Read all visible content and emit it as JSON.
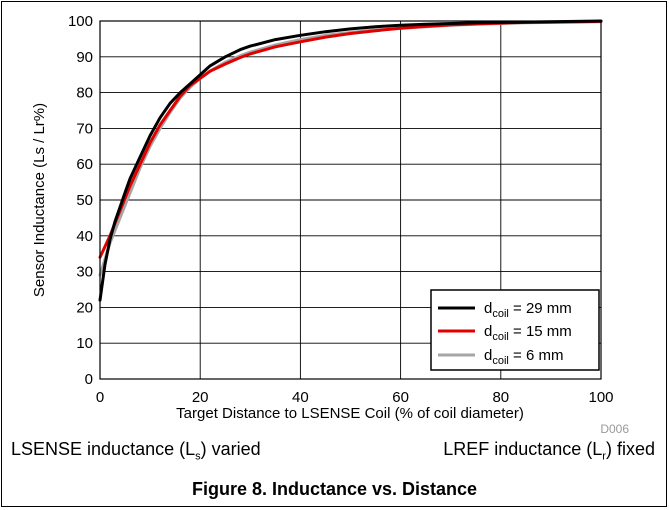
{
  "chart_data": {
    "type": "line",
    "xlabel": "Target Distance to LSENSE Coil (% of coil diameter)",
    "ylabel": "Sensor Inductance (Ls / Lr%)",
    "xlim": [
      0,
      100
    ],
    "ylim": [
      0,
      100
    ],
    "xticks": [
      0,
      20,
      40,
      60,
      80,
      100
    ],
    "yticks": [
      0,
      10,
      20,
      30,
      40,
      50,
      60,
      70,
      80,
      90,
      100
    ],
    "grid": true,
    "legend_position": "bottom-right",
    "code": "D006",
    "series": [
      {
        "name": "d_coil = 29 mm",
        "color": "#000000",
        "x": [
          0,
          1,
          2,
          3,
          4,
          5,
          6,
          8,
          10,
          12,
          14,
          16,
          18,
          20,
          22,
          25,
          28,
          30,
          35,
          40,
          45,
          50,
          55,
          60,
          65,
          70,
          75,
          80,
          85,
          90,
          95,
          100
        ],
        "y": [
          22,
          32,
          39,
          44,
          48,
          52,
          56,
          62,
          68,
          73,
          77,
          80,
          82.5,
          85,
          87.5,
          90,
          92,
          93,
          94.8,
          96,
          97,
          97.8,
          98.4,
          98.8,
          99.1,
          99.3,
          99.5,
          99.6,
          99.7,
          99.8,
          99.9,
          100
        ]
      },
      {
        "name": "d_coil = 15 mm",
        "color": "#e00000",
        "x": [
          0,
          2,
          4,
          6,
          8,
          10,
          12,
          14,
          16,
          18,
          20,
          22,
          25,
          28,
          30,
          35,
          40,
          45,
          50,
          55,
          60,
          65,
          70,
          75,
          80,
          85,
          90,
          95,
          100
        ],
        "y": [
          34,
          40,
          47,
          54,
          60,
          66,
          71,
          75,
          79,
          82,
          84,
          86,
          88,
          89.8,
          90.8,
          92.8,
          94.2,
          95.5,
          96.5,
          97.3,
          98,
          98.5,
          98.9,
          99.2,
          99.4,
          99.6,
          99.7,
          99.8,
          99.9
        ]
      },
      {
        "name": "d_coil = 6 mm",
        "color": "#a6a6a6",
        "x": [
          0,
          2,
          4,
          6,
          8,
          10,
          12,
          14,
          16,
          18,
          20,
          22,
          25,
          28,
          30,
          35,
          40,
          45,
          50,
          55,
          60,
          65,
          70,
          75,
          80,
          85,
          90,
          95,
          100
        ],
        "y": [
          29,
          38,
          45,
          52,
          59,
          65,
          70,
          74.5,
          78.5,
          81.5,
          84,
          86,
          88.5,
          90.3,
          91.3,
          93.3,
          94.8,
          96,
          96.8,
          97.5,
          98,
          98.4,
          98.8,
          99.1,
          99.3,
          99.5,
          99.6,
          99.7,
          99.8
        ]
      }
    ]
  },
  "legend": {
    "items": [
      {
        "prefix": "d",
        "sub": "coil",
        "suffix": " = 29 mm"
      },
      {
        "prefix": "d",
        "sub": "coil",
        "suffix": " = 15 mm"
      },
      {
        "prefix": "d",
        "sub": "coil",
        "suffix": " = 6 mm"
      }
    ]
  },
  "captions": {
    "left": {
      "pre": "LSENSE inductance (L",
      "sub": "s",
      "post": ") varied"
    },
    "right": {
      "pre": "LREF inductance (L",
      "sub": "r",
      "post": ") fixed"
    }
  },
  "figure_title": "Figure 8. Inductance vs. Distance"
}
